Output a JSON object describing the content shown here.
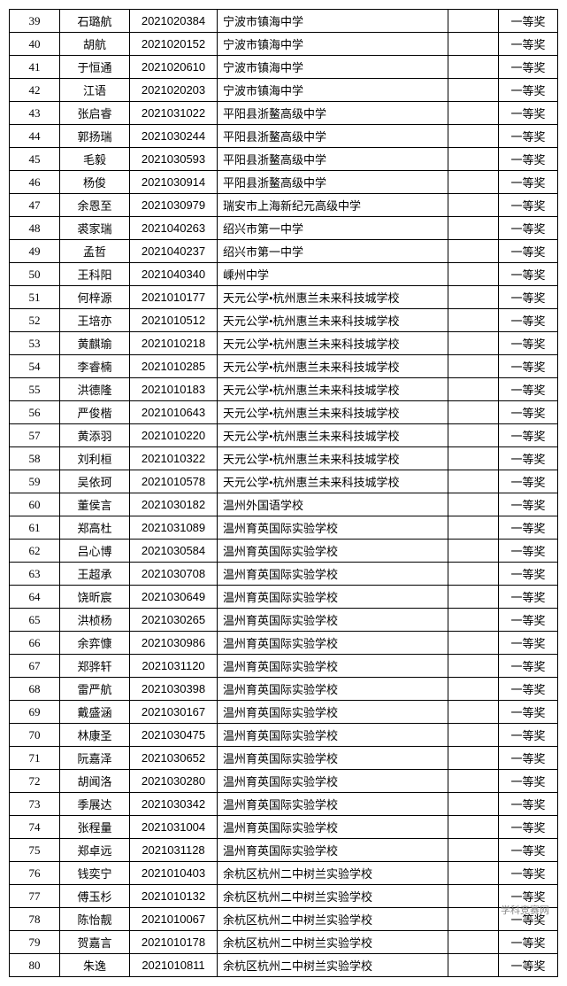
{
  "table": {
    "columns": [
      "index",
      "name",
      "id",
      "school",
      "blank",
      "award"
    ],
    "col_classes": [
      "col-idx",
      "col-name",
      "col-id",
      "col-school",
      "col-blank",
      "col-award"
    ],
    "rows": [
      [
        "39",
        "石璐航",
        "2021020384",
        "宁波市镇海中学",
        "",
        "一等奖"
      ],
      [
        "40",
        "胡航",
        "2021020152",
        "宁波市镇海中学",
        "",
        "一等奖"
      ],
      [
        "41",
        "于恒通",
        "2021020610",
        "宁波市镇海中学",
        "",
        "一等奖"
      ],
      [
        "42",
        "江语",
        "2021020203",
        "宁波市镇海中学",
        "",
        "一等奖"
      ],
      [
        "43",
        "张启睿",
        "2021031022",
        "平阳县浙鳌高级中学",
        "",
        "一等奖"
      ],
      [
        "44",
        "郭扬瑞",
        "2021030244",
        "平阳县浙鳌高级中学",
        "",
        "一等奖"
      ],
      [
        "45",
        "毛毅",
        "2021030593",
        "平阳县浙鳌高级中学",
        "",
        "一等奖"
      ],
      [
        "46",
        "杨俊",
        "2021030914",
        "平阳县浙鳌高级中学",
        "",
        "一等奖"
      ],
      [
        "47",
        "余恩至",
        "2021030979",
        "瑞安市上海新纪元高级中学",
        "",
        "一等奖"
      ],
      [
        "48",
        "裘家瑞",
        "2021040263",
        "绍兴市第一中学",
        "",
        "一等奖"
      ],
      [
        "49",
        "孟哲",
        "2021040237",
        "绍兴市第一中学",
        "",
        "一等奖"
      ],
      [
        "50",
        "王科阳",
        "2021040340",
        "嵊州中学",
        "",
        "一等奖"
      ],
      [
        "51",
        "何梓源",
        "2021010177",
        "天元公学•杭州惠兰未来科技城学校",
        "",
        "一等奖"
      ],
      [
        "52",
        "王培亦",
        "2021010512",
        "天元公学•杭州惠兰未来科技城学校",
        "",
        "一等奖"
      ],
      [
        "53",
        "黄麒瑜",
        "2021010218",
        "天元公学•杭州惠兰未来科技城学校",
        "",
        "一等奖"
      ],
      [
        "54",
        "李睿楠",
        "2021010285",
        "天元公学•杭州惠兰未来科技城学校",
        "",
        "一等奖"
      ],
      [
        "55",
        "洪德隆",
        "2021010183",
        "天元公学•杭州惠兰未来科技城学校",
        "",
        "一等奖"
      ],
      [
        "56",
        "严俊楷",
        "2021010643",
        "天元公学•杭州惠兰未来科技城学校",
        "",
        "一等奖"
      ],
      [
        "57",
        "黄添羽",
        "2021010220",
        "天元公学•杭州惠兰未来科技城学校",
        "",
        "一等奖"
      ],
      [
        "58",
        "刘利桓",
        "2021010322",
        "天元公学•杭州惠兰未来科技城学校",
        "",
        "一等奖"
      ],
      [
        "59",
        "吴依珂",
        "2021010578",
        "天元公学•杭州惠兰未来科技城学校",
        "",
        "一等奖"
      ],
      [
        "60",
        "董侯言",
        "2021030182",
        "温州外国语学校",
        "",
        "一等奖"
      ],
      [
        "61",
        "郑高杜",
        "2021031089",
        "温州育英国际实验学校",
        "",
        "一等奖"
      ],
      [
        "62",
        "吕心博",
        "2021030584",
        "温州育英国际实验学校",
        "",
        "一等奖"
      ],
      [
        "63",
        "王超承",
        "2021030708",
        "温州育英国际实验学校",
        "",
        "一等奖"
      ],
      [
        "64",
        "饶昕宸",
        "2021030649",
        "温州育英国际实验学校",
        "",
        "一等奖"
      ],
      [
        "65",
        "洪桢杨",
        "2021030265",
        "温州育英国际实验学校",
        "",
        "一等奖"
      ],
      [
        "66",
        "余弈慷",
        "2021030986",
        "温州育英国际实验学校",
        "",
        "一等奖"
      ],
      [
        "67",
        "郑骅轩",
        "2021031120",
        "温州育英国际实验学校",
        "",
        "一等奖"
      ],
      [
        "68",
        "雷严航",
        "2021030398",
        "温州育英国际实验学校",
        "",
        "一等奖"
      ],
      [
        "69",
        "戴盛涵",
        "2021030167",
        "温州育英国际实验学校",
        "",
        "一等奖"
      ],
      [
        "70",
        "林康圣",
        "2021030475",
        "温州育英国际实验学校",
        "",
        "一等奖"
      ],
      [
        "71",
        "阮嘉泽",
        "2021030652",
        "温州育英国际实验学校",
        "",
        "一等奖"
      ],
      [
        "72",
        "胡闻洛",
        "2021030280",
        "温州育英国际实验学校",
        "",
        "一等奖"
      ],
      [
        "73",
        "季展达",
        "2021030342",
        "温州育英国际实验学校",
        "",
        "一等奖"
      ],
      [
        "74",
        "张程量",
        "2021031004",
        "温州育英国际实验学校",
        "",
        "一等奖"
      ],
      [
        "75",
        "郑卓远",
        "2021031128",
        "温州育英国际实验学校",
        "",
        "一等奖"
      ],
      [
        "76",
        "钱奕宁",
        "2021010403",
        "余杭区杭州二中树兰实验学校",
        "",
        "一等奖"
      ],
      [
        "77",
        "傅玉杉",
        "2021010132",
        "余杭区杭州二中树兰实验学校",
        "",
        "一等奖"
      ],
      [
        "78",
        "陈怡靓",
        "2021010067",
        "余杭区杭州二中树兰实验学校",
        "",
        "一等奖"
      ],
      [
        "79",
        "贺嘉言",
        "2021010178",
        "余杭区杭州二中树兰实验学校",
        "",
        "一等奖"
      ],
      [
        "80",
        "朱逸",
        "2021010811",
        "余杭区杭州二中树兰实验学校",
        "",
        "一等奖"
      ]
    ]
  },
  "watermark": "学科竞赛网"
}
